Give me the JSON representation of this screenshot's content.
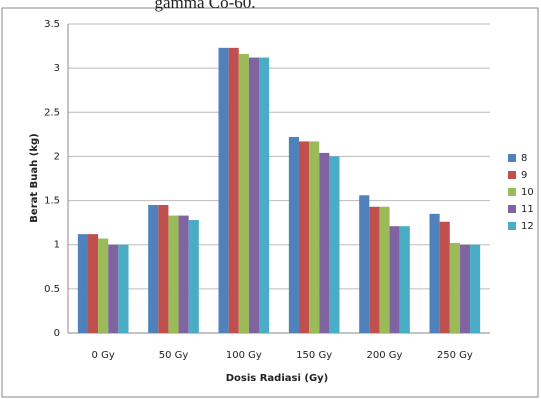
{
  "chart_data": {
    "type": "bar",
    "title": "gamma  Co-60.",
    "x_label": "Dosis  Radiasi (Gy)",
    "y_label": "Berat Buah (kg)",
    "categories": [
      "0 Gy",
      "50 Gy",
      "100 Gy",
      "150 Gy",
      "200 Gy",
      "250 Gy"
    ],
    "series": [
      {
        "name": "8",
        "color": "#4f81bd",
        "values": [
          1.12,
          1.45,
          3.23,
          2.22,
          1.56,
          1.35
        ]
      },
      {
        "name": "9",
        "color": "#c0504d",
        "values": [
          1.12,
          1.45,
          3.23,
          2.17,
          1.43,
          1.26
        ]
      },
      {
        "name": "10",
        "color": "#9bbb59",
        "values": [
          1.07,
          1.33,
          3.16,
          2.17,
          1.43,
          1.02
        ]
      },
      {
        "name": "11",
        "color": "#8064a2",
        "values": [
          1.0,
          1.33,
          3.12,
          2.04,
          1.21,
          1.0
        ]
      },
      {
        "name": "12",
        "color": "#4bacc6",
        "values": [
          1.0,
          1.28,
          3.12,
          2.0,
          1.21,
          1.0
        ]
      }
    ],
    "ylim": [
      0,
      3.5
    ],
    "yticks": [
      0,
      0.5,
      1,
      1.5,
      2,
      2.5,
      3,
      3.5
    ],
    "grid": true,
    "legend": "right"
  }
}
